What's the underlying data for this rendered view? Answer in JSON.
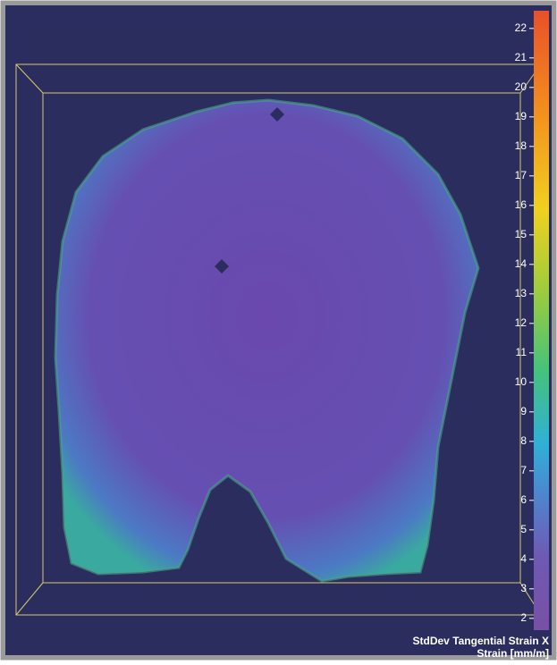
{
  "chart_data": {
    "type": "colormap",
    "title": "StdDev Tangential Strain X",
    "subtitle": "Strain [mm/m]",
    "ylim": [
      1.6,
      22.6
    ],
    "yticks": [
      2,
      3,
      4,
      5,
      6,
      7,
      8,
      9,
      10,
      11,
      12,
      13,
      14,
      15,
      16,
      17,
      18,
      19,
      20,
      21,
      22
    ]
  }
}
